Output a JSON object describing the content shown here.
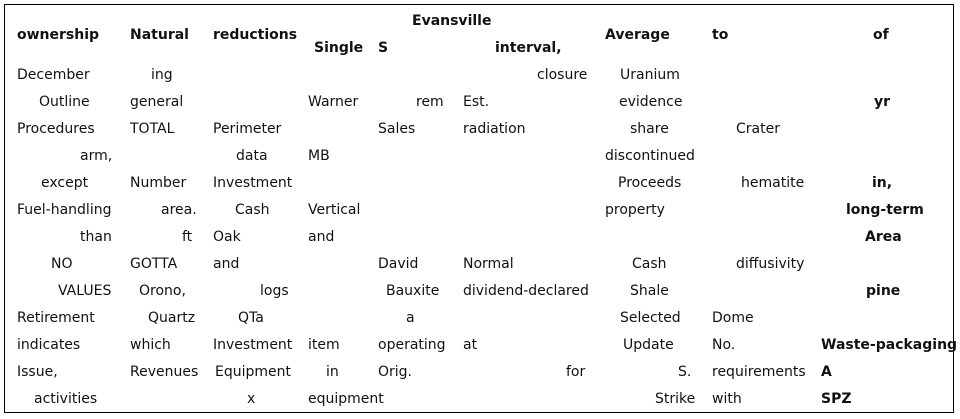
{
  "table": {
    "header": {
      "ownership": "ownership",
      "natural": "Natural",
      "reductions": "reductions",
      "evansville": "Evansville",
      "single": "Single",
      "s": "S",
      "interval": "interval,",
      "average": "Average",
      "to": "to",
      "of": "of"
    },
    "rows": [
      [
        "December",
        "ing",
        "",
        "",
        "",
        "closure",
        "Uranium",
        "",
        ""
      ],
      [
        "Outline",
        "general",
        "",
        "Warner",
        "rem",
        "Est.",
        "evidence",
        "",
        "yr"
      ],
      [
        "Procedures",
        "TOTAL",
        "Perimeter",
        "",
        "Sales",
        "radiation",
        "share",
        "Crater",
        ""
      ],
      [
        "arm,",
        "",
        "data",
        "MB",
        "",
        "",
        "discontinued",
        "",
        ""
      ],
      [
        "except",
        "Number",
        "Investment",
        "",
        "",
        "",
        "Proceeds",
        "hematite",
        "in,"
      ],
      [
        "Fuel-handling",
        "area.",
        "Cash",
        "Vertical",
        "",
        "",
        "property",
        "",
        "long-term"
      ],
      [
        "than",
        "ft",
        "Oak",
        "and",
        "",
        "",
        "",
        "",
        "Area"
      ],
      [
        "NO",
        "GOTTA",
        "and",
        "",
        "David",
        "Normal",
        "Cash",
        "diffusivity",
        ""
      ],
      [
        "VALUES",
        "Orono,",
        "logs",
        "",
        "Bauxite",
        "dividend-declared",
        "Shale",
        "",
        "pine"
      ],
      [
        "Retirement",
        "Quartz",
        "QTa",
        "",
        "a",
        "",
        "Selected",
        "Dome",
        ""
      ],
      [
        "indicates",
        "which",
        "Investment",
        "item",
        "operating",
        "at",
        "Update",
        "No.",
        "Waste-packaging"
      ],
      [
        "Issue,",
        "Revenues",
        "Equipment",
        "in",
        "Orig.",
        "for",
        "S.",
        "requirements",
        "A"
      ],
      [
        "activities",
        "",
        "x",
        "equipment",
        "",
        "",
        "Strike",
        "with",
        "SPZ"
      ]
    ]
  }
}
